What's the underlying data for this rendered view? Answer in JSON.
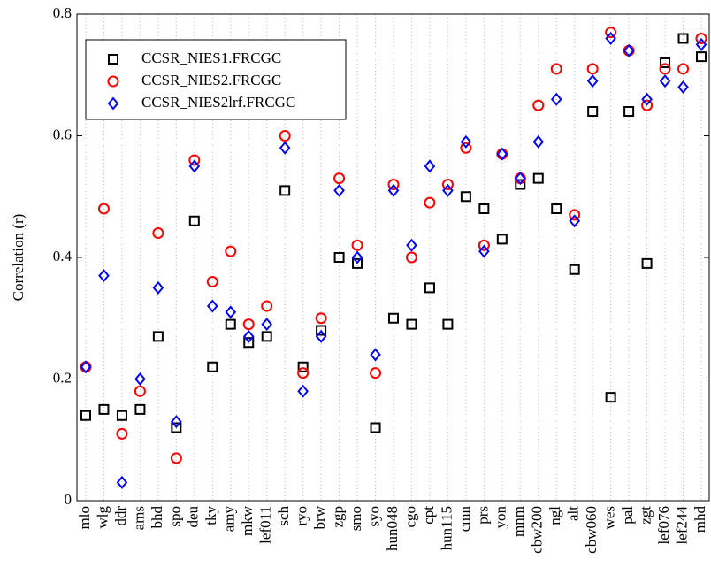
{
  "chart_data": {
    "type": "scatter",
    "ylabel": "Correlation (r)",
    "categories": [
      "mlo",
      "wlg",
      "ddr",
      "ams",
      "bhd",
      "spo",
      "deu",
      "tky",
      "amy",
      "mkw",
      "lef011",
      "sch",
      "ryo",
      "brw",
      "zgp",
      "smo",
      "syo",
      "hun048",
      "cgo",
      "cpt",
      "hun115",
      "cmn",
      "prs",
      "yon",
      "mnm",
      "cbw200",
      "ngl",
      "alt",
      "cbw060",
      "wes",
      "pal",
      "zgt",
      "lef076",
      "lef244",
      "mhd"
    ],
    "series": [
      {
        "name": "CCSR_NIES1.FRCGC",
        "color": "#000000",
        "marker": "square",
        "values": [
          0.14,
          0.15,
          0.14,
          0.15,
          0.27,
          0.12,
          0.46,
          0.22,
          0.29,
          0.26,
          0.27,
          0.51,
          0.22,
          0.28,
          0.4,
          0.39,
          0.12,
          0.3,
          0.29,
          0.35,
          0.29,
          0.5,
          0.48,
          0.43,
          0.52,
          0.53,
          0.48,
          0.38,
          0.64,
          0.17,
          0.64,
          0.39,
          0.72,
          0.76,
          0.73
        ]
      },
      {
        "name": "CCSR_NIES2.FRCGC",
        "color": "#ff0000",
        "marker": "circle",
        "values": [
          0.22,
          0.48,
          0.11,
          0.18,
          0.44,
          0.07,
          0.56,
          0.36,
          0.41,
          0.29,
          0.32,
          0.6,
          0.21,
          0.3,
          0.53,
          0.42,
          0.21,
          0.52,
          0.4,
          0.49,
          0.52,
          0.58,
          0.42,
          0.57,
          0.53,
          0.65,
          0.71,
          0.47,
          0.71,
          0.77,
          0.74,
          0.65,
          0.71,
          0.71,
          0.76
        ]
      },
      {
        "name": "CCSR_NIES2lrf.FRCGC",
        "color": "#0000ff",
        "marker": "diamond",
        "values": [
          0.22,
          0.37,
          0.03,
          0.2,
          0.35,
          0.13,
          0.55,
          0.32,
          0.31,
          0.27,
          0.29,
          0.58,
          0.18,
          0.27,
          0.51,
          0.4,
          0.24,
          0.51,
          0.42,
          0.55,
          0.51,
          0.59,
          0.41,
          0.57,
          0.53,
          0.59,
          0.66,
          0.46,
          0.69,
          0.76,
          0.74,
          0.66,
          0.69,
          0.68,
          0.75
        ]
      }
    ],
    "ylim": [
      0,
      0.8
    ],
    "yticks": [
      0,
      0.2,
      0.4,
      0.6,
      0.8
    ],
    "grid": true,
    "legend": "upper left"
  }
}
